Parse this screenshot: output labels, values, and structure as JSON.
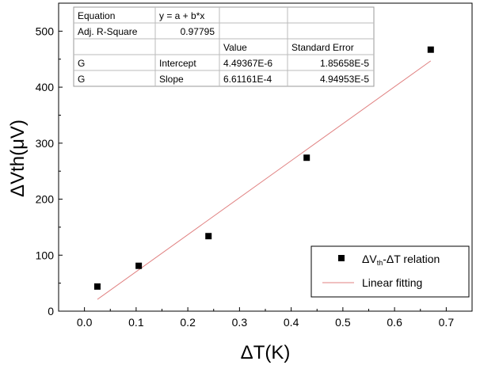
{
  "chart_data": {
    "type": "scatter",
    "xlabel": "ΔT(K)",
    "ylabel": "ΔVth(μV)",
    "xlim": [
      -0.05,
      0.75
    ],
    "ylim": [
      0,
      550
    ],
    "x_ticks": [
      "0.0",
      "0.1",
      "0.2",
      "0.3",
      "0.4",
      "0.5",
      "0.6",
      "0.7"
    ],
    "x_tick_values": [
      0.0,
      0.1,
      0.2,
      0.3,
      0.4,
      0.5,
      0.6,
      0.7
    ],
    "y_ticks": [
      "0",
      "100",
      "200",
      "300",
      "400",
      "500"
    ],
    "y_tick_values": [
      0,
      100,
      200,
      300,
      400,
      500
    ],
    "series": [
      {
        "name": "ΔVth-ΔT relation",
        "marker": "square",
        "color": "#000000",
        "x": [
          0.025,
          0.105,
          0.24,
          0.43,
          0.67
        ],
        "y": [
          44,
          81,
          134,
          274,
          467
        ]
      },
      {
        "name": "Linear fitting",
        "type": "line",
        "color": "#e08080",
        "x": [
          0.025,
          0.67
        ],
        "y": [
          21,
          447
        ]
      }
    ],
    "fit_table": {
      "rows": [
        [
          "Equation",
          "y = a + b*x",
          "",
          ""
        ],
        [
          "Adj. R-Square",
          "0.97795",
          "",
          ""
        ],
        [
          "",
          "",
          "Value",
          "Standard Error"
        ],
        [
          "G",
          "Intercept",
          "4.49367E-6",
          "1.85658E-5"
        ],
        [
          "G",
          "Slope",
          "6.61161E-4",
          "4.94953E-5"
        ]
      ]
    },
    "legend": {
      "position": "bottom-right",
      "entries": [
        {
          "label_main": "ΔV",
          "label_sub": "th",
          "label_rest": "-ΔT relation"
        },
        {
          "label_main": "Linear fitting",
          "label_sub": "",
          "label_rest": ""
        }
      ]
    },
    "grid": false
  }
}
